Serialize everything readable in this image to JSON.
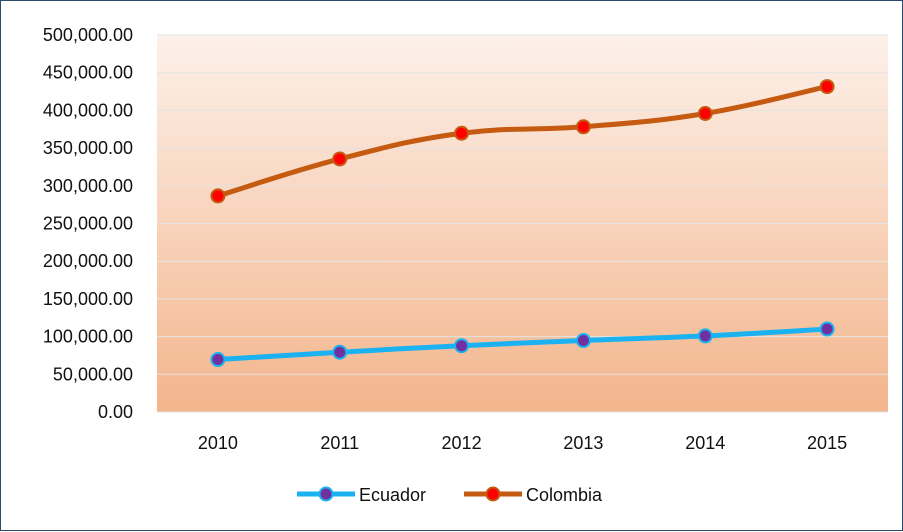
{
  "chart_data": {
    "type": "line",
    "title": "",
    "xlabel": "",
    "ylabel": "",
    "categories": [
      "2010",
      "2011",
      "2012",
      "2013",
      "2014",
      "2015"
    ],
    "ylim": [
      0,
      500000
    ],
    "y_ticks": [
      "0.00",
      "50,000.00",
      "100,000.00",
      "150,000.00",
      "200,000.00",
      "250,000.00",
      "300,000.00",
      "350,000.00",
      "400,000.00",
      "450,000.00",
      "500,000.00"
    ],
    "grid": true,
    "legend_position": "bottom",
    "series": [
      {
        "name": "Ecuador",
        "values": [
          69600,
          79300,
          87900,
          94800,
          100900,
          110000
        ],
        "line_color": "#1ab2f0",
        "marker_color": "#7030a0"
      },
      {
        "name": "Colombia",
        "values": [
          286600,
          335600,
          369700,
          378300,
          395900,
          431600
        ],
        "line_color": "#c55a11",
        "marker_color": "#ff0000"
      }
    ]
  }
}
